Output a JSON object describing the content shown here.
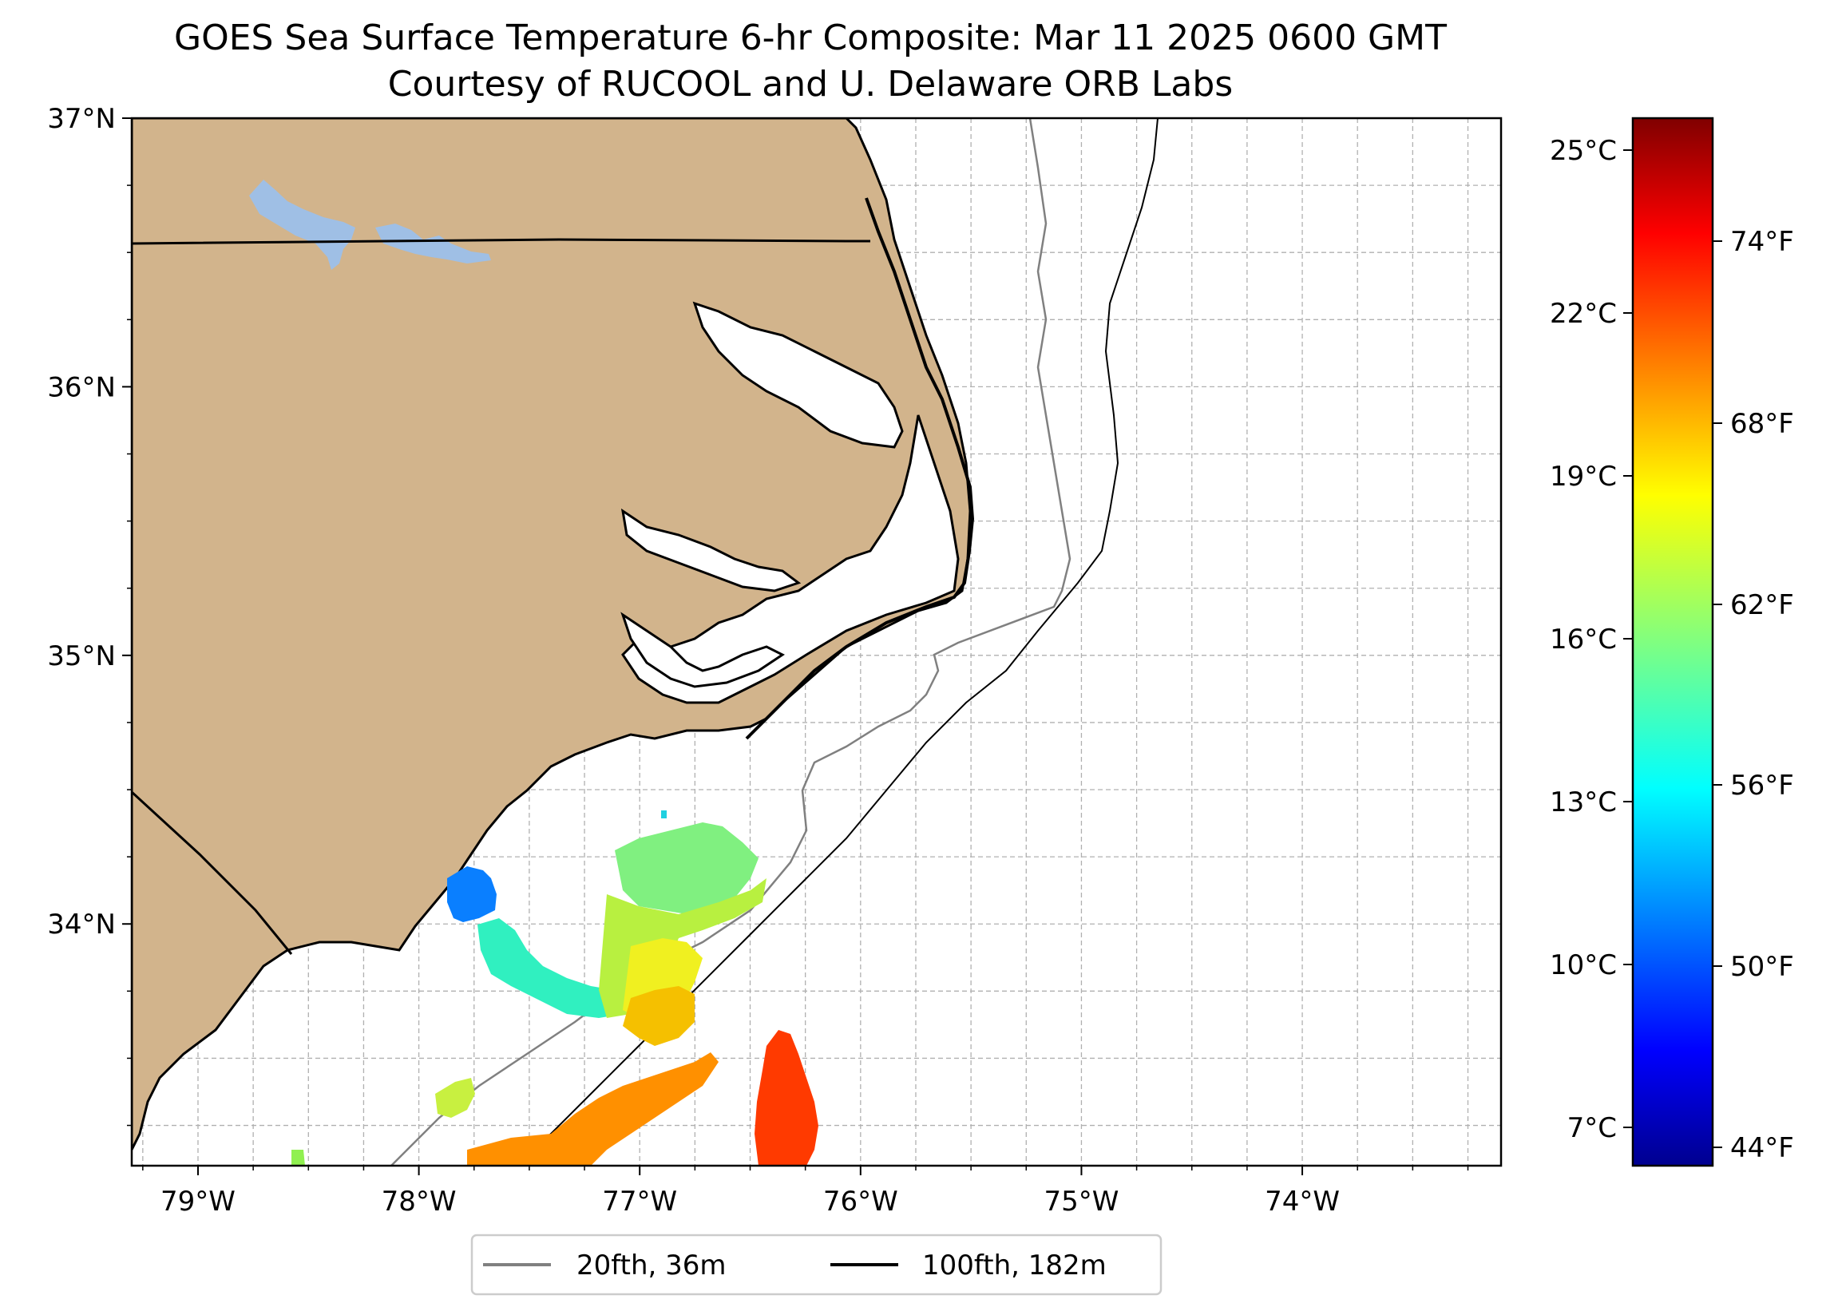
{
  "title_line1": "GOES Sea Surface Temperature 6-hr Composite: Mar 11 2025 0600 GMT",
  "title_line2": "Courtesy of RUCOOL and U. Delaware ORB Labs",
  "map": {
    "lon_range": [
      -79.3,
      -73.1
    ],
    "lat_range": [
      33.1,
      37.0
    ],
    "lon_ticks": [
      "79°W",
      "78°W",
      "77°W",
      "76°W",
      "75°W",
      "74°W"
    ],
    "lat_ticks": [
      "37°N",
      "36°N",
      "35°N",
      "34°N"
    ],
    "land_color": "#d2b48c",
    "lake_color": "#9fbfe5",
    "grid": "dashed, 0.25° spacing"
  },
  "colorbar": {
    "colormap": "jet",
    "celsius_ticks": [
      "25°C",
      "22°C",
      "19°C",
      "16°C",
      "13°C",
      "10°C",
      "7°C"
    ],
    "fahrenheit_ticks": [
      "74°F",
      "68°F",
      "62°F",
      "56°F",
      "50°F",
      "44°F"
    ]
  },
  "legend": {
    "items": [
      {
        "label": "20fth, 36m",
        "color": "#808080"
      },
      {
        "label": "100fth, 182m",
        "color": "#000000"
      }
    ]
  },
  "sst_patches": [
    {
      "name": "blue-patch",
      "color": "#0a7fff"
    },
    {
      "name": "cyan-green-patch",
      "color": "#30f0c0"
    },
    {
      "name": "green-yellow-patch",
      "color": "#b8f040"
    },
    {
      "name": "yellow-patch",
      "color": "#f0f020"
    },
    {
      "name": "gold-patch",
      "color": "#f5c000"
    },
    {
      "name": "orange-patch",
      "color": "#ff9000"
    },
    {
      "name": "red-patch",
      "color": "#ff3a00"
    }
  ]
}
